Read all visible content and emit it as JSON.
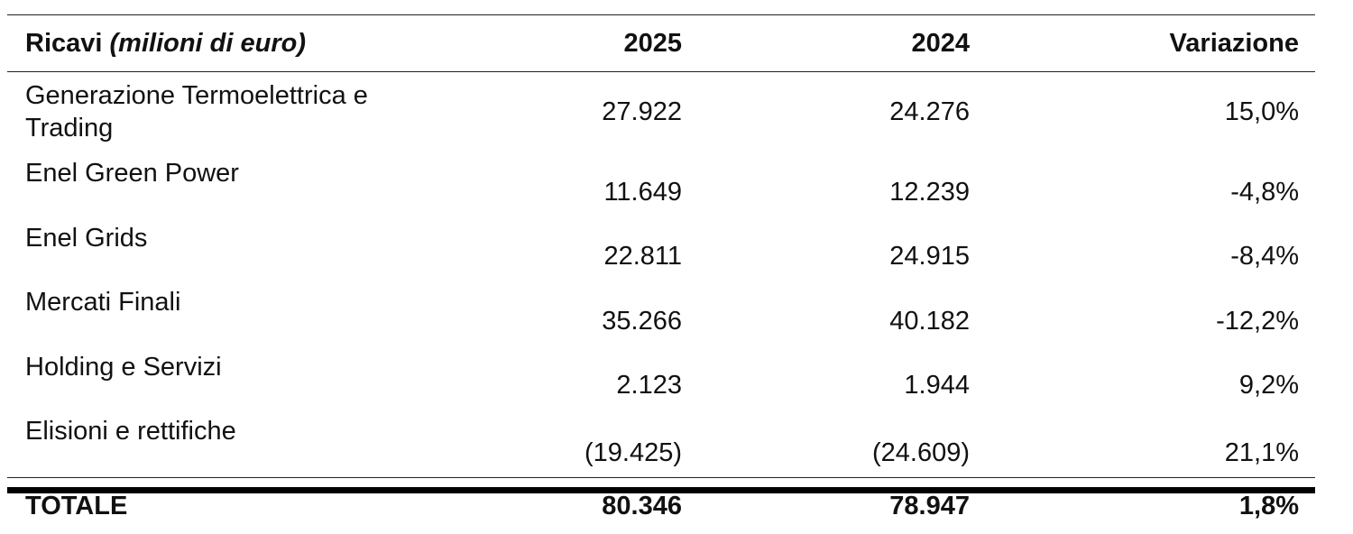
{
  "table": {
    "header": {
      "label_prefix": "Ricavi",
      "label_italic": "(milioni di euro)",
      "col_2025": "2025",
      "col_2024": "2024",
      "col_variation": "Variazione"
    },
    "rows": [
      {
        "label": "Generazione Termoelettrica e Trading",
        "v2025": "27.922",
        "v2024": "24.276",
        "variation": "15,0%"
      },
      {
        "label": "Enel Green Power",
        "v2025": "11.649",
        "v2024": "12.239",
        "variation": "-4,8%"
      },
      {
        "label": "Enel Grids",
        "v2025": "22.811",
        "v2024": "24.915",
        "variation": "-8,4%"
      },
      {
        "label": "Mercati Finali",
        "v2025": "35.266",
        "v2024": "40.182",
        "variation": "-12,2%"
      },
      {
        "label": "Holding e Servizi",
        "v2025": "2.123",
        "v2024": "1.944",
        "variation": "9,2%"
      },
      {
        "label": "Elisioni e rettifiche",
        "v2025": "(19.425)",
        "v2024": "(24.609)",
        "variation": "21,1%"
      }
    ],
    "total": {
      "label": "TOTALE",
      "v2025": "80.346",
      "v2024": "78.947",
      "variation": "1,8%"
    }
  }
}
